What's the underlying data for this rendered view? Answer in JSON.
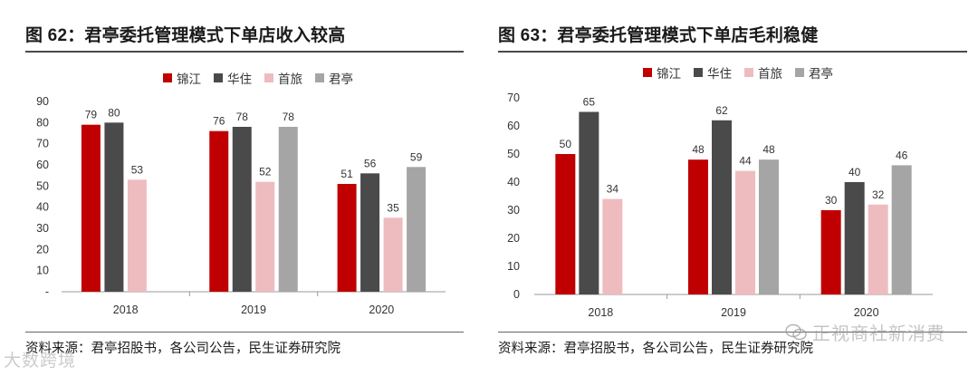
{
  "left": {
    "title": "图 62：君亭委托管理模式下单店收入较高",
    "source": "资料来源：君亭招股书，各公司公告，民生证券研究院"
  },
  "right": {
    "title": "图 63：君亭委托管理模式下单店毛利稳健",
    "source": "资料来源：君亭招股书，各公司公告，民生证券研究院"
  },
  "watermarks": {
    "left": "大数跨境",
    "right": "正视商社新消费",
    "right_icon": "wechat-icon"
  },
  "colors": {
    "锦江": "#c00000",
    "华住": "#4a4a4a",
    "首旅": "#eebcbf",
    "君亭": "#a5a5a5",
    "axis": "#999999"
  },
  "chart_data": [
    {
      "type": "bar",
      "categories": [
        "2018",
        "2019",
        "2020"
      ],
      "series": [
        {
          "name": "锦江",
          "values": [
            79,
            76,
            51
          ]
        },
        {
          "name": "华住",
          "values": [
            80,
            78,
            56
          ]
        },
        {
          "name": "首旅",
          "values": [
            53,
            52,
            35
          ]
        },
        {
          "name": "君亭",
          "values": [
            null,
            78,
            59
          ]
        }
      ],
      "ylim": [
        0,
        90
      ],
      "yticks": [
        0,
        10,
        20,
        30,
        40,
        50,
        60,
        70,
        80,
        90
      ],
      "yticklabels": [
        "-",
        "10",
        "20",
        "30",
        "40",
        "50",
        "60",
        "70",
        "80",
        "90"
      ],
      "legend": "top",
      "grid": false,
      "xlabel": "",
      "ylabel": ""
    },
    {
      "type": "bar",
      "categories": [
        "2018",
        "2019",
        "2020"
      ],
      "series": [
        {
          "name": "锦江",
          "values": [
            50,
            48,
            30
          ]
        },
        {
          "name": "华住",
          "values": [
            65,
            62,
            40
          ]
        },
        {
          "name": "首旅",
          "values": [
            34,
            44,
            32
          ]
        },
        {
          "name": "君亭",
          "values": [
            null,
            48,
            46
          ]
        }
      ],
      "ylim": [
        0,
        70
      ],
      "yticks": [
        0,
        10,
        20,
        30,
        40,
        50,
        60,
        70
      ],
      "yticklabels": [
        "0",
        "10",
        "20",
        "30",
        "40",
        "50",
        "60",
        "70"
      ],
      "legend": "top",
      "grid": false,
      "xlabel": "",
      "ylabel": ""
    }
  ]
}
